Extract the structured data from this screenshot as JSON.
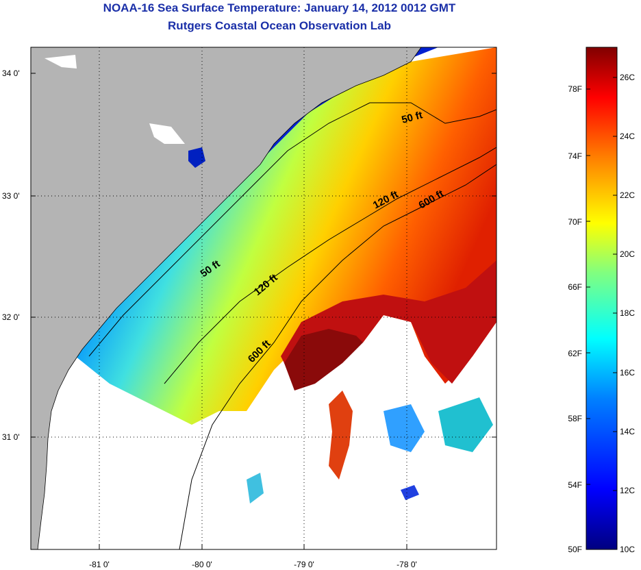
{
  "title": "NOAA-16 Sea Surface Temperature:  January 14, 2012 0012 GMT",
  "subtitle": "Rutgers Coastal Ocean Observation Lab",
  "map": {
    "lat_ticks": [
      "34 0'",
      "33 0'",
      "32 0'",
      "31 0'"
    ],
    "lon_ticks": [
      "-81 0'",
      "-80 0'",
      "-79 0'",
      "-78 0'"
    ],
    "contours": [
      {
        "label": "50 ft"
      },
      {
        "label": "50 ft"
      },
      {
        "label": "120 ft"
      },
      {
        "label": "120 ft"
      },
      {
        "label": "600 ft"
      },
      {
        "label": "600 ft"
      }
    ],
    "colors": {
      "land": "#b4b4b4",
      "cloud": "#ffffff",
      "coastline": "#000000"
    }
  },
  "colorbar": {
    "fahrenheit_labels": [
      "78F",
      "74F",
      "70F",
      "66F",
      "62F",
      "58F",
      "54F",
      "50F"
    ],
    "celsius_labels": [
      "26C",
      "24C",
      "22C",
      "20C",
      "18C",
      "16C",
      "14C",
      "12C",
      "10C"
    ],
    "gradient": [
      "#000080",
      "#0000ff",
      "#0080ff",
      "#00ffff",
      "#80ff80",
      "#ffff00",
      "#ff8000",
      "#ff0000",
      "#800000"
    ]
  }
}
